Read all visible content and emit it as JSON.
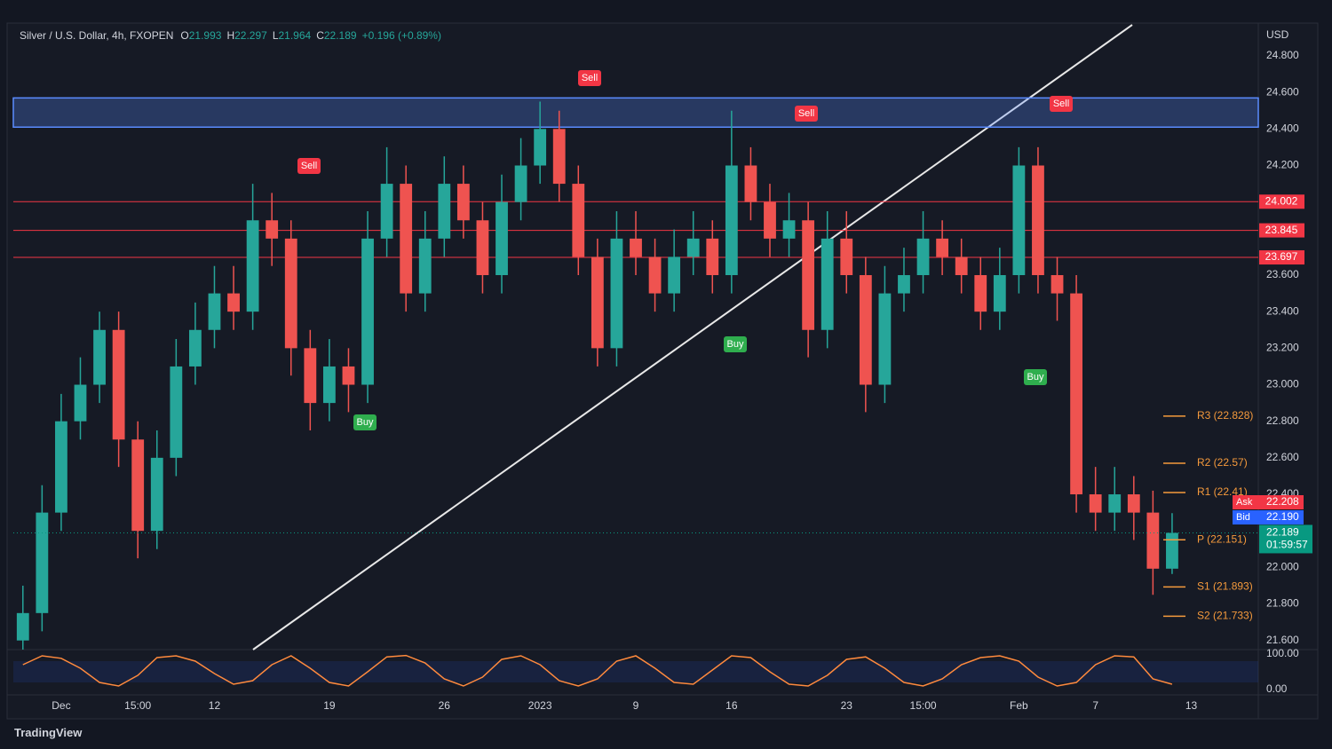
{
  "header": {
    "symbol": "Silver / U.S. Dollar, 4h, FXOPEN",
    "ohlc": [
      {
        "k": "O",
        "v": "21.993"
      },
      {
        "k": "H",
        "v": "22.297"
      },
      {
        "k": "L",
        "v": "21.964"
      },
      {
        "k": "C",
        "v": "22.189"
      }
    ],
    "change": "+0.196 (+0.89%)"
  },
  "footer": {
    "brand": "TradingView"
  },
  "chart_data": {
    "type": "candlestick",
    "categories": [
      null,
      null,
      "Dec",
      null,
      null,
      null,
      "15:00",
      null,
      null,
      null,
      "12",
      null,
      null,
      null,
      null,
      null,
      "19",
      null,
      null,
      null,
      null,
      null,
      "26",
      null,
      null,
      null,
      null,
      "2023",
      null,
      null,
      null,
      null,
      "9",
      null,
      null,
      null,
      null,
      "16",
      null,
      null,
      null,
      null,
      null,
      "23",
      null,
      null,
      null,
      "15:00",
      null,
      null,
      null,
      null,
      "Feb",
      null,
      null,
      null,
      "7",
      null,
      null,
      null,
      null,
      "13",
      null,
      null,
      null
    ],
    "open": [
      21.6,
      21.75,
      22.3,
      22.8,
      23.0,
      23.3,
      22.7,
      22.2,
      22.6,
      23.1,
      23.3,
      23.5,
      23.4,
      23.9,
      23.8,
      23.2,
      22.9,
      23.1,
      23.0,
      23.8,
      24.1,
      23.5,
      23.8,
      24.1,
      23.9,
      23.6,
      24.0,
      24.2,
      24.4,
      24.1,
      23.7,
      23.2,
      23.8,
      23.7,
      23.5,
      23.7,
      23.8,
      23.6,
      24.2,
      24.0,
      23.8,
      23.9,
      23.3,
      23.8,
      23.6,
      23.0,
      23.5,
      23.6,
      23.8,
      23.7,
      23.6,
      23.4,
      23.6,
      24.2,
      23.6,
      23.5,
      22.4,
      22.3,
      22.4,
      22.3,
      21.993,
      null,
      null,
      null,
      null
    ],
    "high": [
      21.9,
      22.45,
      22.95,
      23.15,
      23.4,
      23.4,
      22.8,
      22.75,
      23.25,
      23.45,
      23.65,
      23.65,
      24.1,
      24.05,
      23.9,
      23.3,
      23.25,
      23.2,
      23.95,
      24.3,
      24.2,
      23.95,
      24.25,
      24.2,
      24.0,
      24.15,
      24.35,
      24.55,
      24.5,
      24.2,
      23.8,
      23.95,
      23.95,
      23.8,
      23.85,
      23.95,
      23.9,
      24.5,
      24.3,
      24.1,
      24.05,
      24.0,
      23.95,
      23.95,
      23.7,
      23.65,
      23.75,
      23.95,
      23.9,
      23.8,
      23.7,
      23.75,
      24.3,
      24.3,
      23.7,
      23.6,
      22.55,
      22.55,
      22.5,
      22.42,
      22.297,
      null,
      null,
      null,
      null
    ],
    "low": [
      21.55,
      21.65,
      22.2,
      22.7,
      22.9,
      22.55,
      22.05,
      22.1,
      22.5,
      23.0,
      23.2,
      23.3,
      23.3,
      23.65,
      23.05,
      22.75,
      22.8,
      22.85,
      22.9,
      23.7,
      23.4,
      23.4,
      23.7,
      23.8,
      23.5,
      23.5,
      23.9,
      24.1,
      24.0,
      23.6,
      23.1,
      23.1,
      23.6,
      23.4,
      23.4,
      23.6,
      23.5,
      23.5,
      23.9,
      23.7,
      23.7,
      23.15,
      23.2,
      23.5,
      22.85,
      22.9,
      23.4,
      23.5,
      23.6,
      23.5,
      23.3,
      23.3,
      23.5,
      23.5,
      23.35,
      22.3,
      22.2,
      22.2,
      22.15,
      21.85,
      21.964,
      null,
      null,
      null,
      null
    ],
    "close": [
      21.75,
      22.3,
      22.8,
      23.0,
      23.3,
      22.7,
      22.2,
      22.6,
      23.1,
      23.3,
      23.5,
      23.4,
      23.9,
      23.8,
      23.2,
      22.9,
      23.1,
      23.0,
      23.8,
      24.1,
      23.5,
      23.8,
      24.1,
      23.9,
      23.6,
      24.0,
      24.2,
      24.4,
      24.1,
      23.7,
      23.2,
      23.8,
      23.7,
      23.5,
      23.7,
      23.8,
      23.6,
      24.2,
      24.0,
      23.8,
      23.9,
      23.3,
      23.8,
      23.6,
      23.0,
      23.5,
      23.6,
      23.8,
      23.7,
      23.6,
      23.4,
      23.6,
      24.2,
      23.6,
      23.5,
      22.4,
      22.3,
      22.4,
      22.3,
      21.993,
      22.189,
      null,
      null,
      null,
      null
    ],
    "up_color": "#26a69a",
    "down_color": "#ef5350",
    "ylim": [
      21.55,
      24.97
    ],
    "y_axis_label": "USD",
    "yticks": [
      {
        "value": 24.8,
        "label": "24.800"
      },
      {
        "value": 24.6,
        "label": "24.600"
      },
      {
        "value": 24.4,
        "label": "24.400"
      },
      {
        "value": 24.2,
        "label": "24.200"
      },
      {
        "value": 23.6,
        "label": "23.600"
      },
      {
        "value": 23.4,
        "label": "23.400"
      },
      {
        "value": 23.2,
        "label": "23.200"
      },
      {
        "value": 23.0,
        "label": "23.000"
      },
      {
        "value": 22.8,
        "label": "22.800"
      },
      {
        "value": 22.6,
        "label": "22.600"
      },
      {
        "value": 22.4,
        "label": "22.400"
      },
      {
        "value": 22.0,
        "label": "22.000"
      },
      {
        "value": 21.8,
        "label": "21.800"
      },
      {
        "value": 21.6,
        "label": "21.600"
      }
    ],
    "grid": false,
    "zone": {
      "values": [
        24.41,
        24.57
      ],
      "color": "#5b8cff"
    },
    "levels": {
      "color": "#f23645",
      "items": [
        {
          "value": 24.002,
          "label": "24.002"
        },
        {
          "value": 23.845,
          "label": "23.845"
        },
        {
          "value": 23.697,
          "label": "23.697"
        }
      ]
    },
    "pivots": {
      "color": "#f59a3c",
      "items": [
        {
          "label": "R3 (22.828)",
          "value": 22.828
        },
        {
          "label": "R2 (22.57)",
          "value": 22.57
        },
        {
          "label": "R1 (22.41)",
          "value": 22.41
        },
        {
          "label": "P (22.151)",
          "value": 22.151
        },
        {
          "label": "S1 (21.893)",
          "value": 21.893
        },
        {
          "label": "S2 (21.733)",
          "value": 21.733
        }
      ]
    },
    "quotes": [
      {
        "name": "Ask",
        "value": 22.208,
        "label": "22.208",
        "color": "#f23645"
      },
      {
        "name": "Bid",
        "value": 22.19,
        "label": "22.190",
        "color": "#2962ff"
      }
    ],
    "last": {
      "value": 22.189,
      "label": "22.189",
      "countdown": "01:59:57",
      "color": "#089981"
    },
    "signals": [
      {
        "label": "Sell",
        "color": "#f23645"
      },
      {
        "label": "Buy",
        "color": "#2fae4e"
      },
      {
        "label": "Sell",
        "color": "#f23645"
      },
      {
        "label": "Buy",
        "color": "#2fae4e"
      },
      {
        "label": "Sell",
        "color": "#f23645"
      },
      {
        "label": "Buy",
        "color": "#2fae4e"
      },
      {
        "label": "Sell",
        "color": "#f23645"
      }
    ],
    "oscillator": {
      "color": "#ff8a3d",
      "ylim": [
        -10,
        110
      ],
      "yticks": [
        {
          "value": 100,
          "label": "100.00"
        },
        {
          "value": 0,
          "label": "0.00"
        }
      ],
      "values": [
        70,
        95,
        88,
        60,
        20,
        10,
        40,
        90,
        95,
        80,
        45,
        15,
        25,
        70,
        95,
        60,
        20,
        10,
        50,
        92,
        96,
        75,
        30,
        10,
        35,
        85,
        95,
        70,
        25,
        10,
        30,
        80,
        95,
        60,
        20,
        15,
        55,
        95,
        90,
        50,
        15,
        10,
        40,
        85,
        92,
        60,
        20,
        10,
        30,
        70,
        90,
        95,
        80,
        35,
        10,
        20,
        70,
        95,
        92,
        30,
        15,
        null,
        null,
        null,
        null
      ]
    }
  }
}
